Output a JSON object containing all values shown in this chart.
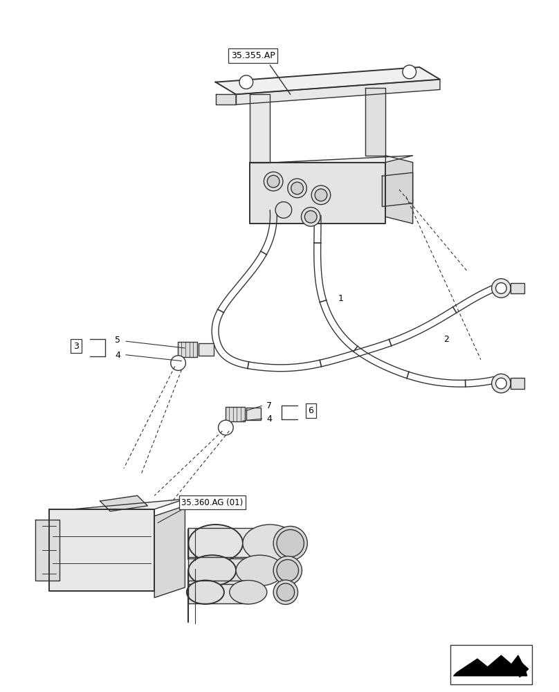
{
  "bg_color": "#ffffff",
  "line_color": "#333333",
  "fig_width": 8.08,
  "fig_height": 10.0,
  "dpi": 100,
  "ref_label_35355": "35.355.AP",
  "ref_label_35360": "35.360.AG (01)"
}
